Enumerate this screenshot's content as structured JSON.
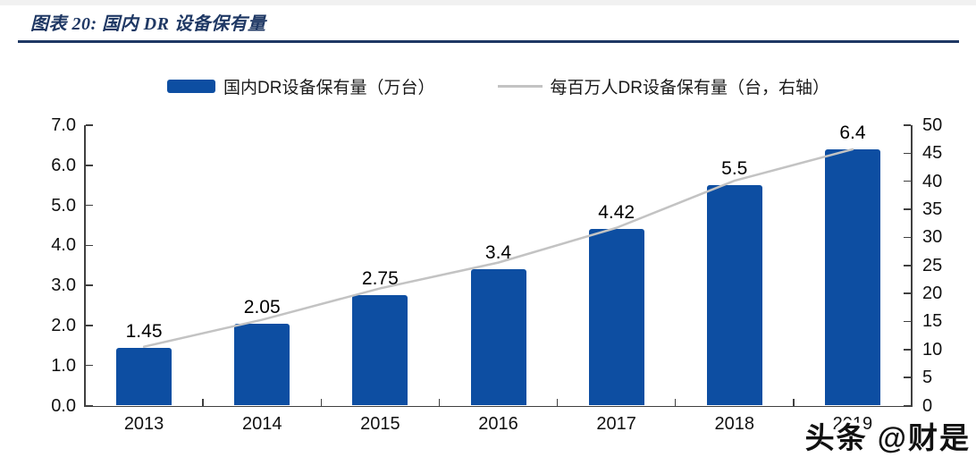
{
  "figure": {
    "title": "图表 20:  国内 DR 设备保有量",
    "title_color": "#1F3864",
    "rule_color": "#1F3864"
  },
  "legend": {
    "items": [
      {
        "label": "国内DR设备保有量（万台）",
        "marker": "bar-swatch",
        "color": "#0D4EA2"
      },
      {
        "label": "每百万人DR设备保有量（台，右轴）",
        "marker": "line-swatch",
        "color": "#C3C3C3"
      }
    ]
  },
  "watermark": {
    "text": "头条 @财是"
  },
  "chart_data": {
    "type": "bar",
    "subtype": "bar+line-dual-axis",
    "categories": [
      "2013",
      "2014",
      "2015",
      "2016",
      "2017",
      "2018",
      "2019"
    ],
    "note_on_categories": "last category label hidden behind watermark in screenshot",
    "series": [
      {
        "name": "国内DR设备保有量（万台）",
        "type": "bar",
        "axis": "left",
        "color": "#0D4EA2",
        "values": [
          1.45,
          2.05,
          2.75,
          3.4,
          4.42,
          5.5,
          6.4
        ],
        "data_labels": [
          "1.45",
          "2.05",
          "2.75",
          "3.4",
          "4.42",
          "5.5",
          "6.4"
        ]
      },
      {
        "name": "每百万人DR设备保有量（台，右轴）",
        "type": "line",
        "axis": "right",
        "color": "#C3C3C3",
        "values": [
          10.5,
          15.3,
          20.9,
          25.5,
          31.7,
          40.1,
          45.7
        ]
      }
    ],
    "left_axis": {
      "min": 0,
      "max": 7,
      "step": 1,
      "tick_labels": [
        "0.0",
        "1.0",
        "2.0",
        "3.0",
        "4.0",
        "5.0",
        "6.0",
        "7.0"
      ]
    },
    "right_axis": {
      "min": 0,
      "max": 50,
      "step": 5,
      "tick_labels": [
        "0",
        "5",
        "10",
        "15",
        "20",
        "25",
        "30",
        "35",
        "40",
        "45",
        "50"
      ]
    },
    "grid": "off",
    "legend_position": "top-center",
    "axis_color": "#404040",
    "text_color": "#111111"
  }
}
